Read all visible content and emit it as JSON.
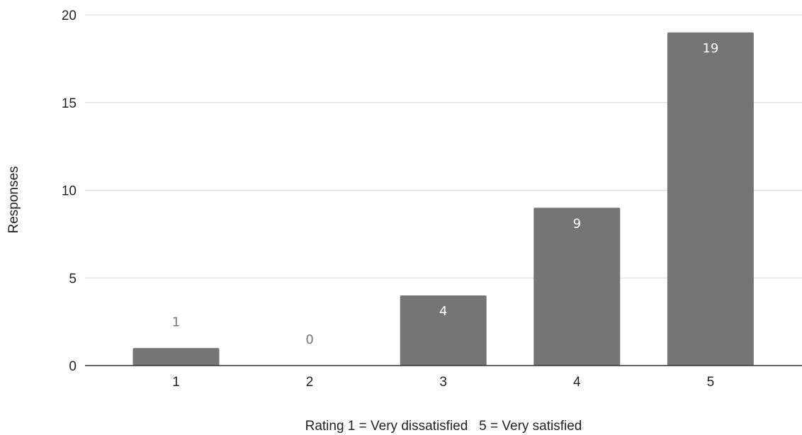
{
  "chart_data": {
    "type": "bar",
    "categories": [
      "1",
      "2",
      "3",
      "4",
      "5"
    ],
    "values": [
      1,
      0,
      4,
      9,
      19
    ],
    "xlabel": "Rating 1 = Very dissatisfied   5 = Very satisfied",
    "ylabel": "Responses",
    "ylim": [
      0,
      20
    ],
    "yticks": [
      0,
      5,
      10,
      15,
      20
    ],
    "grid": true,
    "legend": "none",
    "bar_color": "#757575",
    "gridline_color": "#d9d9d9",
    "baseline_color": "#333333",
    "label_inside_color": "#ffffff",
    "label_outside_color": "#757575"
  }
}
